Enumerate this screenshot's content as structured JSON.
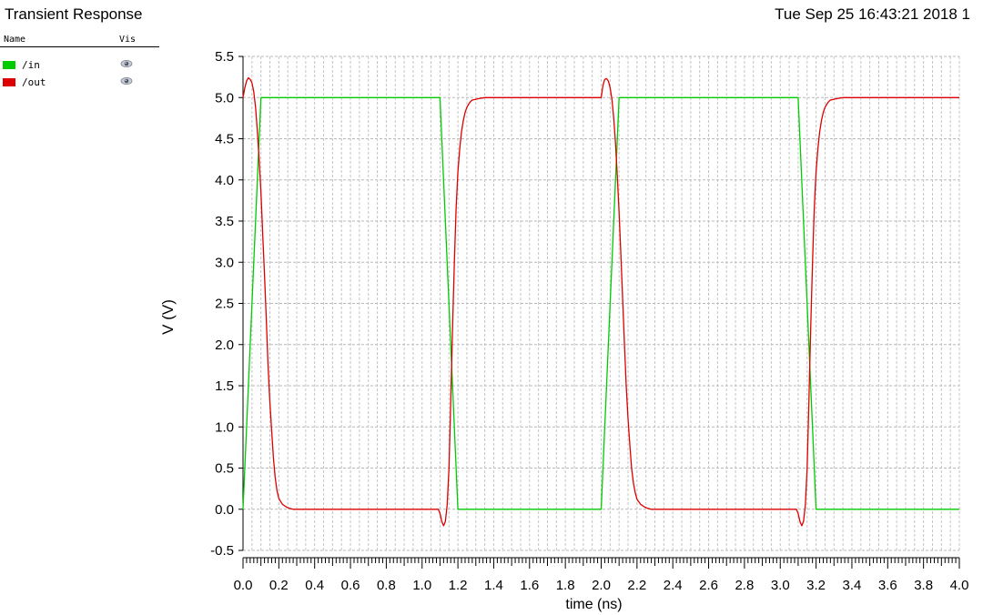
{
  "window": {
    "title": "Transient Response",
    "timestamp": "Tue Sep 25 16:43:21 2018  1"
  },
  "legend": {
    "header_name": "Name",
    "header_vis": "Vis",
    "entries": [
      {
        "label": "/in",
        "color": "#00cc00",
        "visible_icon": "eye-icon"
      },
      {
        "label": "/out",
        "color": "#dd0000",
        "visible_icon": "eye-icon"
      }
    ]
  },
  "chart_data": {
    "type": "line",
    "xlabel": "time (ns)",
    "ylabel": "V (V)",
    "xlim": [
      0.0,
      4.0
    ],
    "ylim": [
      -0.5,
      5.5
    ],
    "x_ticks": [
      "0.0",
      "0.2",
      "0.4",
      "0.6",
      "0.8",
      "1.0",
      "1.2",
      "1.4",
      "1.6",
      "1.8",
      "2.0",
      "2.2",
      "2.4",
      "2.6",
      "2.8",
      "3.0",
      "3.2",
      "3.4",
      "3.6",
      "3.8",
      "4.0"
    ],
    "y_ticks": [
      "5.5",
      "5.0",
      "4.5",
      "4.0",
      "3.5",
      "3.0",
      "2.5",
      "2.0",
      "1.5",
      "1.0",
      "0.5",
      "0.0",
      "-0.5"
    ],
    "grid": true,
    "series": [
      {
        "name": "/in",
        "color": "#00cc00",
        "x": [
          0.0,
          0.1,
          1.1,
          1.2,
          2.0,
          2.1,
          3.1,
          3.2,
          4.0
        ],
        "y": [
          0.0,
          5.0,
          5.0,
          0.0,
          0.0,
          5.0,
          5.0,
          0.0,
          0.0
        ]
      },
      {
        "name": "/out",
        "color": "#dd0000",
        "x": [
          0.0,
          0.01,
          0.02,
          0.03,
          0.04,
          0.05,
          0.06,
          0.07,
          0.08,
          0.09,
          0.1,
          0.11,
          0.12,
          0.13,
          0.14,
          0.15,
          0.16,
          0.17,
          0.18,
          0.19,
          0.2,
          0.22,
          0.24,
          0.26,
          0.28,
          0.3,
          1.09,
          1.1,
          1.11,
          1.12,
          1.13,
          1.14,
          1.15,
          1.16,
          1.17,
          1.18,
          1.19,
          1.2,
          1.21,
          1.22,
          1.23,
          1.24,
          1.25,
          1.26,
          1.27,
          1.28,
          1.3,
          1.32,
          1.35,
          1.38,
          1.4,
          1.45,
          2.0,
          2.01,
          2.02,
          2.03,
          2.04,
          2.05,
          2.06,
          2.07,
          2.08,
          2.09,
          2.1,
          2.11,
          2.12,
          2.13,
          2.14,
          2.15,
          2.16,
          2.17,
          2.18,
          2.19,
          2.2,
          2.22,
          2.24,
          2.26,
          2.28,
          2.3,
          3.09,
          3.1,
          3.11,
          3.12,
          3.13,
          3.14,
          3.15,
          3.16,
          3.17,
          3.18,
          3.19,
          3.2,
          3.21,
          3.22,
          3.23,
          3.24,
          3.25,
          3.26,
          3.27,
          3.28,
          3.3,
          3.32,
          3.35,
          3.38,
          3.4,
          3.45,
          4.0
        ],
        "y": [
          5.0,
          5.12,
          5.2,
          5.24,
          5.22,
          5.18,
          5.07,
          4.88,
          4.6,
          4.25,
          3.85,
          3.35,
          2.85,
          2.3,
          1.75,
          1.3,
          0.95,
          0.62,
          0.38,
          0.22,
          0.13,
          0.06,
          0.03,
          0.01,
          0.0,
          0.0,
          0.0,
          -0.05,
          -0.15,
          -0.2,
          -0.15,
          0.05,
          0.5,
          1.3,
          2.2,
          3.0,
          3.65,
          4.1,
          4.38,
          4.58,
          4.72,
          4.82,
          4.88,
          4.92,
          4.95,
          4.97,
          4.98,
          4.99,
          5.0,
          5.0,
          5.0,
          5.0,
          5.0,
          5.15,
          5.22,
          5.23,
          5.2,
          5.12,
          4.98,
          4.75,
          4.45,
          4.05,
          3.6,
          3.1,
          2.55,
          2.0,
          1.5,
          1.1,
          0.78,
          0.5,
          0.32,
          0.2,
          0.12,
          0.06,
          0.03,
          0.01,
          0.0,
          0.0,
          0.0,
          -0.05,
          -0.15,
          -0.2,
          -0.15,
          0.05,
          0.5,
          1.3,
          2.2,
          3.0,
          3.65,
          4.1,
          4.38,
          4.58,
          4.72,
          4.82,
          4.88,
          4.92,
          4.95,
          4.97,
          4.98,
          4.99,
          5.0,
          5.0,
          5.0,
          5.0,
          5.0
        ]
      }
    ]
  }
}
